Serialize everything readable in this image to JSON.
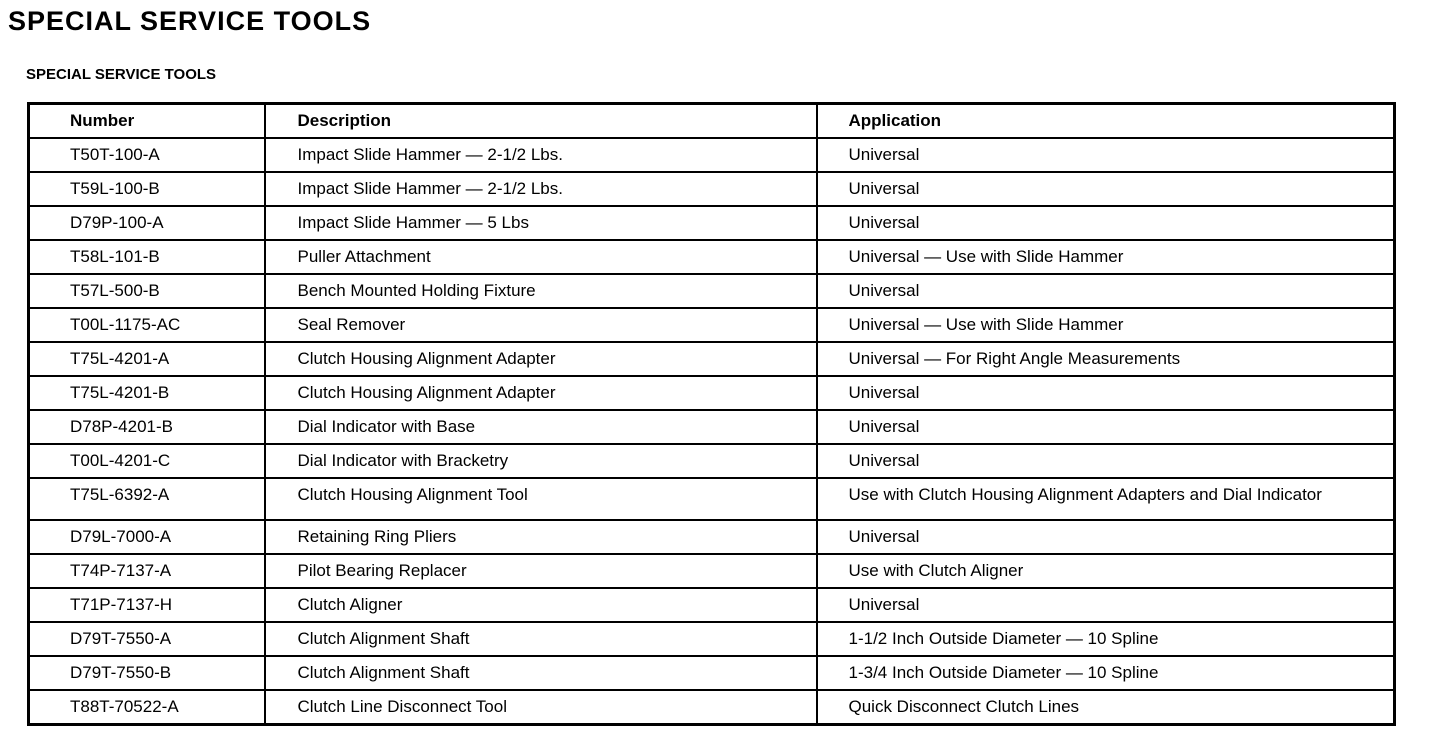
{
  "page_title": "SPECIAL SERVICE TOOLS",
  "table_title": "SPECIAL SERVICE TOOLS",
  "columns": [
    "Number",
    "Description",
    "Application"
  ],
  "rows": [
    [
      "T50T-100-A",
      "Impact Slide Hammer — 2-1/2 Lbs.",
      "Universal"
    ],
    [
      "T59L-100-B",
      "Impact Slide Hammer — 2-1/2 Lbs.",
      "Universal"
    ],
    [
      "D79P-100-A",
      "Impact Slide Hammer — 5 Lbs",
      "Universal"
    ],
    [
      "T58L-101-B",
      "Puller Attachment",
      "Universal — Use with Slide Hammer"
    ],
    [
      "T57L-500-B",
      "Bench Mounted Holding Fixture",
      "Universal"
    ],
    [
      "T00L-1175-AC",
      "Seal Remover",
      "Universal — Use with Slide Hammer"
    ],
    [
      "T75L-4201-A",
      "Clutch Housing Alignment Adapter",
      "Universal — For Right Angle Measurements"
    ],
    [
      "T75L-4201-B",
      "Clutch Housing Alignment Adapter",
      "Universal"
    ],
    [
      "D78P-4201-B",
      "Dial Indicator with Base",
      "Universal"
    ],
    [
      "T00L-4201-C",
      "Dial Indicator with Bracketry",
      "Universal"
    ],
    [
      "T75L-6392-A",
      "Clutch Housing Alignment Tool",
      "Use with Clutch Housing Alignment Adapters and Dial Indicator"
    ],
    [
      "D79L-7000-A",
      "Retaining Ring Pliers",
      "Universal"
    ],
    [
      "T74P-7137-A",
      "Pilot Bearing Replacer",
      "Use with Clutch Aligner"
    ],
    [
      "T71P-7137-H",
      "Clutch Aligner",
      "Universal"
    ],
    [
      "D79T-7550-A",
      "Clutch Alignment Shaft",
      "1-1/2 Inch Outside Diameter — 10 Spline"
    ],
    [
      "D79T-7550-B",
      "Clutch Alignment Shaft",
      "1-3/4 Inch Outside Diameter — 10 Spline"
    ],
    [
      "T88T-70522-A",
      "Clutch Line Disconnect Tool",
      "Quick Disconnect Clutch Lines"
    ]
  ]
}
